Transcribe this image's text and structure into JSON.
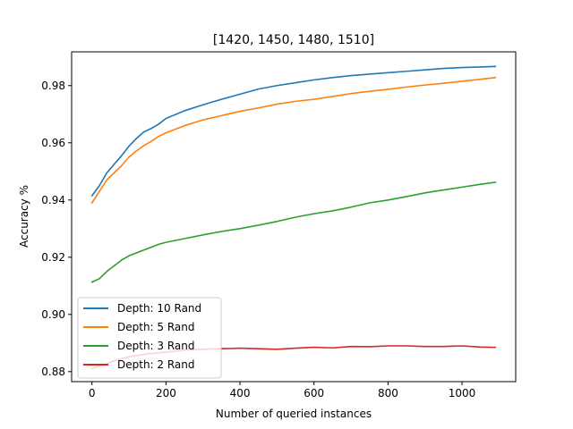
{
  "chart_data": {
    "type": "line",
    "title": "[1420, 1450, 1480, 1510]",
    "xlabel": "Number of queried instances",
    "ylabel": "Accuracy %",
    "xlim": [
      -55,
      1145
    ],
    "ylim": [
      0.8765,
      0.9918
    ],
    "xticks": [
      0,
      200,
      400,
      600,
      800,
      1000
    ],
    "yticks": [
      0.88,
      0.9,
      0.92,
      0.94,
      0.96,
      0.98
    ],
    "ytick_labels": [
      "0.88",
      "0.90",
      "0.92",
      "0.94",
      "0.96",
      "0.98"
    ],
    "grid": false,
    "legend_position": "lower-left",
    "series": [
      {
        "name": "Depth: 10 Rand",
        "color": "#1f77b4",
        "points": [
          [
            0,
            0.9415
          ],
          [
            20,
            0.945
          ],
          [
            40,
            0.9495
          ],
          [
            60,
            0.9525
          ],
          [
            80,
            0.9555
          ],
          [
            100,
            0.9588
          ],
          [
            120,
            0.9615
          ],
          [
            140,
            0.9638
          ],
          [
            160,
            0.965
          ],
          [
            180,
            0.9665
          ],
          [
            200,
            0.9685
          ],
          [
            250,
            0.9712
          ],
          [
            300,
            0.9733
          ],
          [
            350,
            0.9752
          ],
          [
            400,
            0.977
          ],
          [
            450,
            0.9788
          ],
          [
            500,
            0.98
          ],
          [
            550,
            0.981
          ],
          [
            600,
            0.982
          ],
          [
            650,
            0.9828
          ],
          [
            700,
            0.9835
          ],
          [
            750,
            0.984
          ],
          [
            800,
            0.9845
          ],
          [
            850,
            0.985
          ],
          [
            900,
            0.9855
          ],
          [
            950,
            0.986
          ],
          [
            1000,
            0.9863
          ],
          [
            1050,
            0.9865
          ],
          [
            1090,
            0.9867
          ]
        ]
      },
      {
        "name": "Depth: 5 Rand",
        "color": "#ff7f0e",
        "points": [
          [
            0,
            0.939
          ],
          [
            20,
            0.943
          ],
          [
            40,
            0.947
          ],
          [
            60,
            0.9495
          ],
          [
            80,
            0.952
          ],
          [
            100,
            0.955
          ],
          [
            120,
            0.9572
          ],
          [
            140,
            0.959
          ],
          [
            160,
            0.9605
          ],
          [
            180,
            0.9622
          ],
          [
            200,
            0.9635
          ],
          [
            250,
            0.966
          ],
          [
            300,
            0.968
          ],
          [
            350,
            0.9695
          ],
          [
            400,
            0.971
          ],
          [
            450,
            0.9722
          ],
          [
            500,
            0.9735
          ],
          [
            550,
            0.9745
          ],
          [
            600,
            0.9752
          ],
          [
            650,
            0.9762
          ],
          [
            700,
            0.9772
          ],
          [
            750,
            0.978
          ],
          [
            800,
            0.9787
          ],
          [
            850,
            0.9795
          ],
          [
            900,
            0.9802
          ],
          [
            950,
            0.9808
          ],
          [
            1000,
            0.9815
          ],
          [
            1050,
            0.9822
          ],
          [
            1090,
            0.9828
          ]
        ]
      },
      {
        "name": "Depth: 3 Rand",
        "color": "#2ca02c",
        "points": [
          [
            0,
            0.9113
          ],
          [
            20,
            0.9125
          ],
          [
            40,
            0.915
          ],
          [
            60,
            0.917
          ],
          [
            80,
            0.919
          ],
          [
            100,
            0.9205
          ],
          [
            120,
            0.9215
          ],
          [
            140,
            0.9225
          ],
          [
            160,
            0.9235
          ],
          [
            180,
            0.9245
          ],
          [
            200,
            0.9252
          ],
          [
            250,
            0.9265
          ],
          [
            300,
            0.9278
          ],
          [
            350,
            0.929
          ],
          [
            400,
            0.93
          ],
          [
            450,
            0.9312
          ],
          [
            500,
            0.9325
          ],
          [
            550,
            0.934
          ],
          [
            600,
            0.9352
          ],
          [
            650,
            0.9362
          ],
          [
            700,
            0.9375
          ],
          [
            750,
            0.939
          ],
          [
            800,
            0.94
          ],
          [
            850,
            0.9412
          ],
          [
            900,
            0.9425
          ],
          [
            950,
            0.9435
          ],
          [
            1000,
            0.9445
          ],
          [
            1050,
            0.9455
          ],
          [
            1090,
            0.9462
          ]
        ]
      },
      {
        "name": "Depth: 2 Rand",
        "color": "#d62728",
        "points": [
          [
            0,
            0.881
          ],
          [
            20,
            0.882
          ],
          [
            40,
            0.8828
          ],
          [
            60,
            0.8838
          ],
          [
            80,
            0.8845
          ],
          [
            100,
            0.8852
          ],
          [
            150,
            0.8862
          ],
          [
            200,
            0.8868
          ],
          [
            250,
            0.8875
          ],
          [
            300,
            0.8878
          ],
          [
            350,
            0.888
          ],
          [
            400,
            0.8882
          ],
          [
            450,
            0.888
          ],
          [
            500,
            0.8878
          ],
          [
            550,
            0.8882
          ],
          [
            600,
            0.8885
          ],
          [
            650,
            0.8883
          ],
          [
            700,
            0.8888
          ],
          [
            750,
            0.8887
          ],
          [
            800,
            0.889
          ],
          [
            850,
            0.889
          ],
          [
            900,
            0.8888
          ],
          [
            950,
            0.8888
          ],
          [
            1000,
            0.889
          ],
          [
            1050,
            0.8886
          ],
          [
            1090,
            0.8885
          ]
        ]
      }
    ]
  }
}
